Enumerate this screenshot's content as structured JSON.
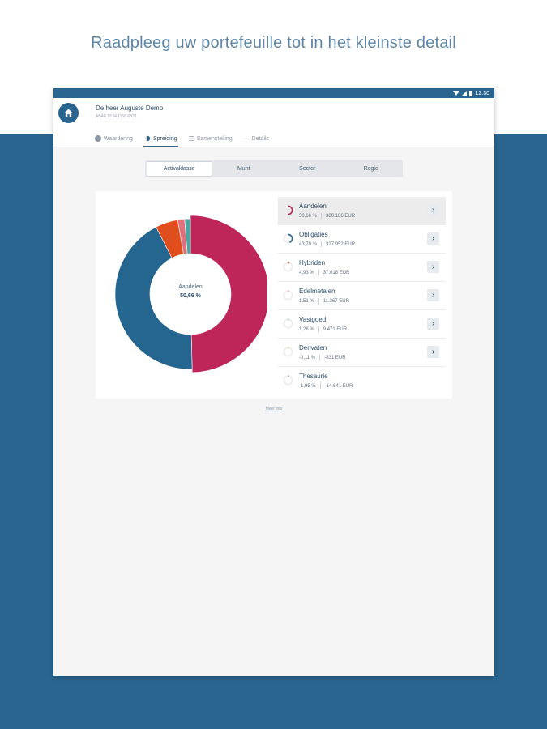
{
  "headline": "Raadpleeg uw portefeuille tot in het kleinste detail",
  "statusbar": {
    "time": "12:30"
  },
  "header": {
    "home_icon": "home-icon",
    "client_name": "De heer Auguste Demo",
    "account": "ABAE 0134 1156 6321"
  },
  "tabs": [
    {
      "label": "Waardering",
      "icon": "clock-icon"
    },
    {
      "label": "Spreiding",
      "icon": "pie-icon"
    },
    {
      "label": "Samenstelling",
      "icon": "list-icon"
    },
    {
      "label": "Details",
      "icon": "more-icon"
    }
  ],
  "segments": [
    "Activaklasse",
    "Munt",
    "Sector",
    "Regio"
  ],
  "donut": {
    "label": "Aandelen",
    "value": "50,66 %"
  },
  "colors": {
    "brand": "#29658f",
    "Aandelen": "#be2558",
    "Obligaties": "#256690",
    "Hybriden": "#e04e1d",
    "Edelmetalen": "#e0707b",
    "Vastgoed": "#4aa6a0",
    "Derivaten": "#d9c21b",
    "Thesaurie": "#7a2a5a"
  },
  "chart_data": {
    "type": "pie",
    "title": "",
    "categories": [
      "Aandelen",
      "Obligaties",
      "Hybriden",
      "Edelmetalen",
      "Vastgoed",
      "Derivaten",
      "Thesaurie"
    ],
    "values": [
      50.66,
      43.7,
      4.93,
      1.51,
      1.26,
      -0.11,
      -1.95
    ]
  },
  "assets": [
    {
      "name": "Aandelen",
      "pct": "50,66 %",
      "amount": "380.186 EUR"
    },
    {
      "name": "Obligaties",
      "pct": "43,70 %",
      "amount": "327.952 EUR"
    },
    {
      "name": "Hybriden",
      "pct": "4,93 %",
      "amount": "37.018 EUR"
    },
    {
      "name": "Edelmetalen",
      "pct": "1,51 %",
      "amount": "11.367 EUR"
    },
    {
      "name": "Vastgoed",
      "pct": "1,26 %",
      "amount": "9.471 EUR"
    },
    {
      "name": "Derivaten",
      "pct": "-0,11 %",
      "amount": "-831 EUR"
    },
    {
      "name": "Thesaurie",
      "pct": "-1,95 %",
      "amount": "-14.641 EUR"
    }
  ],
  "more_info": "Meer info"
}
